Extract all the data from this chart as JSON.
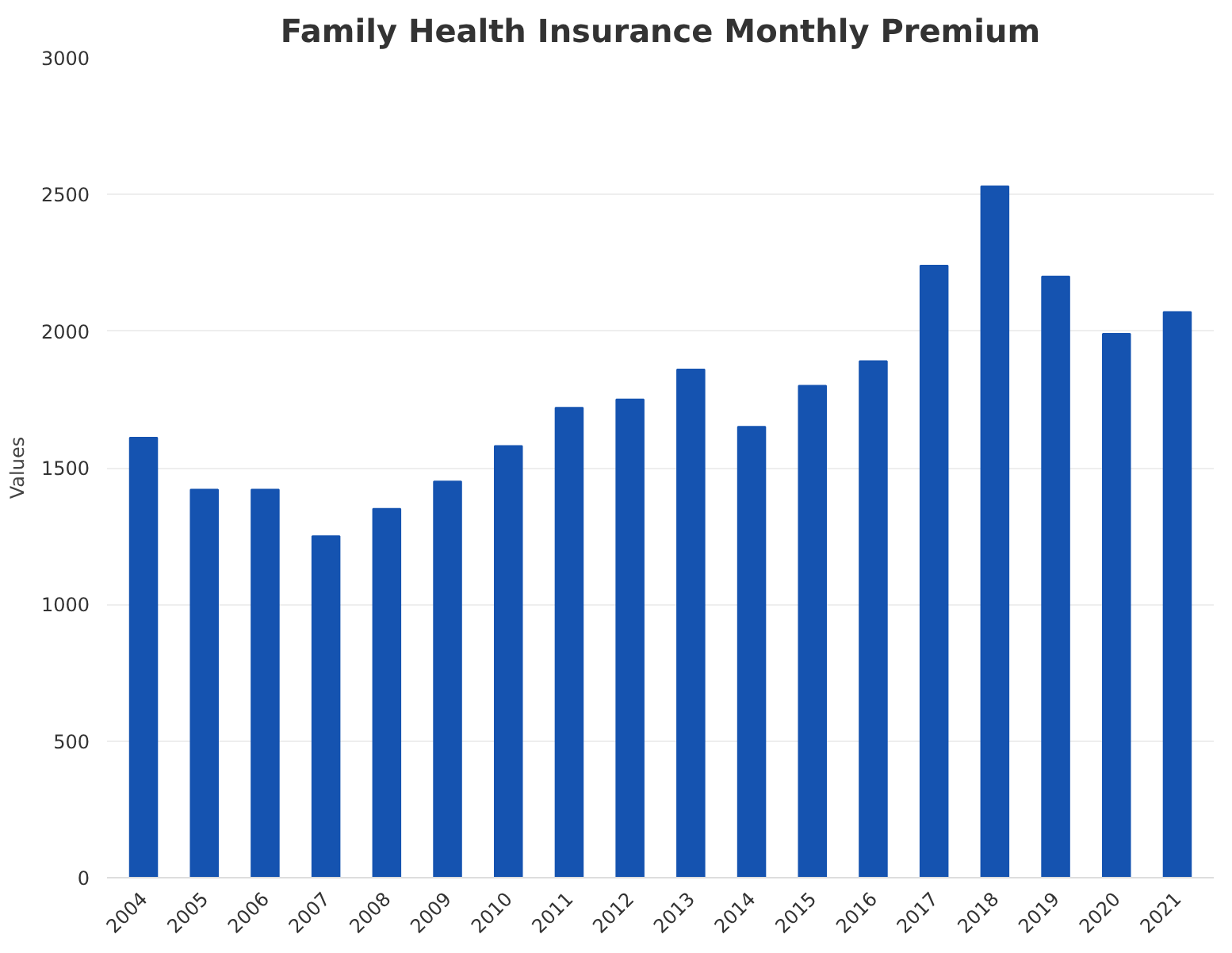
{
  "chart_data": {
    "type": "bar",
    "title": "Family Health Insurance Monthly Premium",
    "ylabel": "Values",
    "categories": [
      "2004",
      "2005",
      "2006",
      "2007",
      "2008",
      "2009",
      "2010",
      "2011",
      "2012",
      "2013",
      "2014",
      "2015",
      "2016",
      "2017",
      "2018",
      "2019",
      "2020",
      "2021"
    ],
    "values": [
      1610,
      1420,
      1420,
      1250,
      1350,
      1450,
      1580,
      1720,
      1750,
      1860,
      1650,
      1800,
      1890,
      2240,
      2530,
      2200,
      1990,
      2070
    ],
    "color": "#1553b0",
    "ylim": [
      0,
      3000
    ],
    "yticks": [
      0,
      500,
      1000,
      1500,
      2000,
      2500,
      3000
    ],
    "grid": "y"
  }
}
